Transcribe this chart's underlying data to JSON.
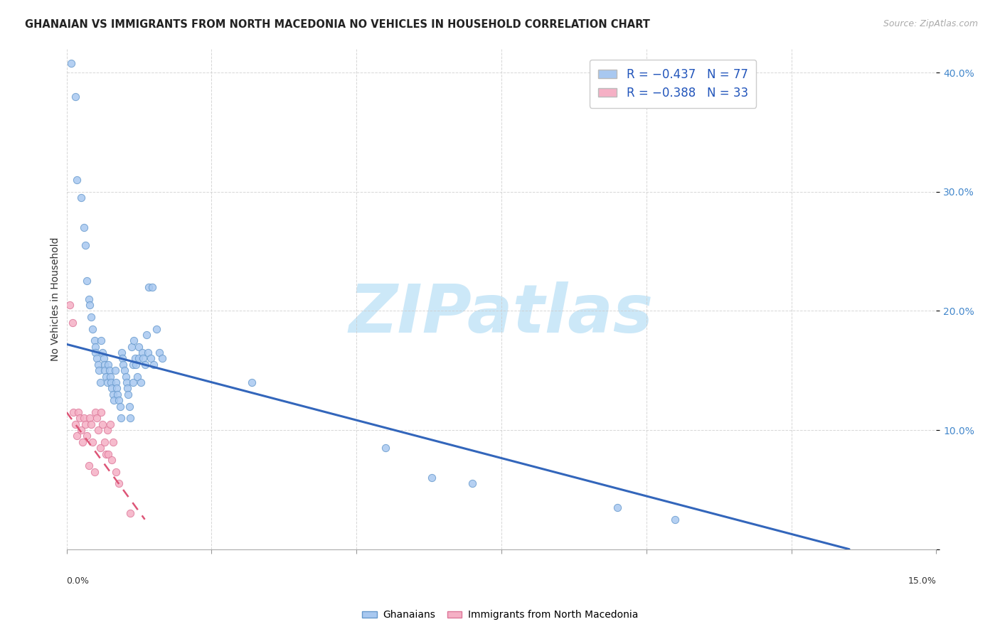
{
  "title": "GHANAIAN VS IMMIGRANTS FROM NORTH MACEDONIA NO VEHICLES IN HOUSEHOLD CORRELATION CHART",
  "source": "Source: ZipAtlas.com",
  "ylabel": "No Vehicles in Household",
  "xlim": [
    0.0,
    15.0
  ],
  "ylim": [
    0.0,
    42.0
  ],
  "yticks": [
    0.0,
    10.0,
    20.0,
    30.0,
    40.0
  ],
  "ytick_labels": [
    "",
    "10.0%",
    "20.0%",
    "30.0%",
    "40.0%"
  ],
  "watermark": "ZIPatlas",
  "watermark_color": "#cce8f8",
  "watermark_fontsize": 68,
  "scatter_size": 55,
  "blue_scatter_color": "#a8c8f0",
  "blue_scatter_edge": "#6699cc",
  "pink_scatter_color": "#f5b0c5",
  "pink_scatter_edge": "#dd7799",
  "blue_line_color": "#3366bb",
  "pink_line_color": "#dd5577",
  "grid_color": "#cccccc",
  "background_color": "#ffffff",
  "ghanaian_x": [
    0.08,
    0.15,
    0.18,
    0.25,
    0.3,
    0.32,
    0.35,
    0.38,
    0.4,
    0.42,
    0.45,
    0.48,
    0.5,
    0.5,
    0.52,
    0.54,
    0.56,
    0.58,
    0.6,
    0.62,
    0.64,
    0.65,
    0.66,
    0.68,
    0.7,
    0.72,
    0.74,
    0.75,
    0.76,
    0.78,
    0.8,
    0.82,
    0.84,
    0.85,
    0.86,
    0.88,
    0.9,
    0.92,
    0.94,
    0.95,
    0.96,
    0.98,
    1.0,
    1.02,
    1.04,
    1.05,
    1.06,
    1.08,
    1.1,
    1.12,
    1.14,
    1.15,
    1.16,
    1.18,
    1.2,
    1.22,
    1.24,
    1.25,
    1.28,
    1.3,
    1.32,
    1.35,
    1.38,
    1.4,
    1.42,
    1.45,
    1.48,
    1.5,
    1.55,
    1.6,
    1.65,
    3.2,
    5.5,
    6.3,
    7.0,
    9.5,
    10.5
  ],
  "ghanaian_y": [
    40.8,
    38.0,
    31.0,
    29.5,
    27.0,
    25.5,
    22.5,
    21.0,
    20.5,
    19.5,
    18.5,
    17.5,
    17.0,
    16.5,
    16.0,
    15.5,
    15.0,
    14.0,
    17.5,
    16.5,
    16.0,
    15.5,
    15.0,
    14.5,
    14.0,
    15.5,
    15.0,
    14.5,
    14.0,
    13.5,
    13.0,
    12.5,
    15.0,
    14.0,
    13.5,
    13.0,
    12.5,
    12.0,
    11.0,
    16.5,
    16.0,
    15.5,
    15.0,
    14.5,
    14.0,
    13.5,
    13.0,
    12.0,
    11.0,
    17.0,
    15.5,
    14.0,
    17.5,
    16.0,
    15.5,
    14.5,
    17.0,
    16.0,
    14.0,
    16.5,
    16.0,
    15.5,
    18.0,
    16.5,
    22.0,
    16.0,
    22.0,
    15.5,
    18.5,
    16.5,
    16.0,
    14.0,
    8.5,
    6.0,
    5.5,
    3.5,
    2.5
  ],
  "macedonia_x": [
    0.05,
    0.1,
    0.12,
    0.15,
    0.18,
    0.2,
    0.22,
    0.25,
    0.28,
    0.3,
    0.32,
    0.35,
    0.38,
    0.4,
    0.42,
    0.45,
    0.48,
    0.5,
    0.52,
    0.55,
    0.58,
    0.6,
    0.62,
    0.65,
    0.68,
    0.7,
    0.72,
    0.75,
    0.78,
    0.8,
    0.85,
    0.9,
    1.1
  ],
  "macedonia_y": [
    20.5,
    19.0,
    11.5,
    10.5,
    9.5,
    11.5,
    11.0,
    10.0,
    9.0,
    11.0,
    10.5,
    9.5,
    7.0,
    11.0,
    10.5,
    9.0,
    6.5,
    11.5,
    11.0,
    10.0,
    8.5,
    11.5,
    10.5,
    9.0,
    8.0,
    10.0,
    8.0,
    10.5,
    7.5,
    9.0,
    6.5,
    5.5,
    3.0
  ],
  "blue_trendline_x": [
    0.0,
    13.5
  ],
  "blue_trendline_y": [
    17.2,
    0.0
  ],
  "pink_trendline_x": [
    0.0,
    1.35
  ],
  "pink_trendline_y": [
    11.5,
    2.5
  ],
  "legend_entries": [
    {
      "label_r": "R = ",
      "label_rv": "-0.437",
      "label_n": "   N = ",
      "label_nv": "77",
      "color": "#a8c8f0"
    },
    {
      "label_r": "R = ",
      "label_rv": "-0.388",
      "label_n": "   N = ",
      "label_nv": "33",
      "color": "#f5b0c5"
    }
  ],
  "bottom_legend": [
    "Ghanaians",
    "Immigrants from North Macedonia"
  ],
  "bottom_legend_colors": [
    "#a8c8f0",
    "#f5b0c5"
  ],
  "bottom_legend_edge": [
    "#6699cc",
    "#dd7799"
  ]
}
